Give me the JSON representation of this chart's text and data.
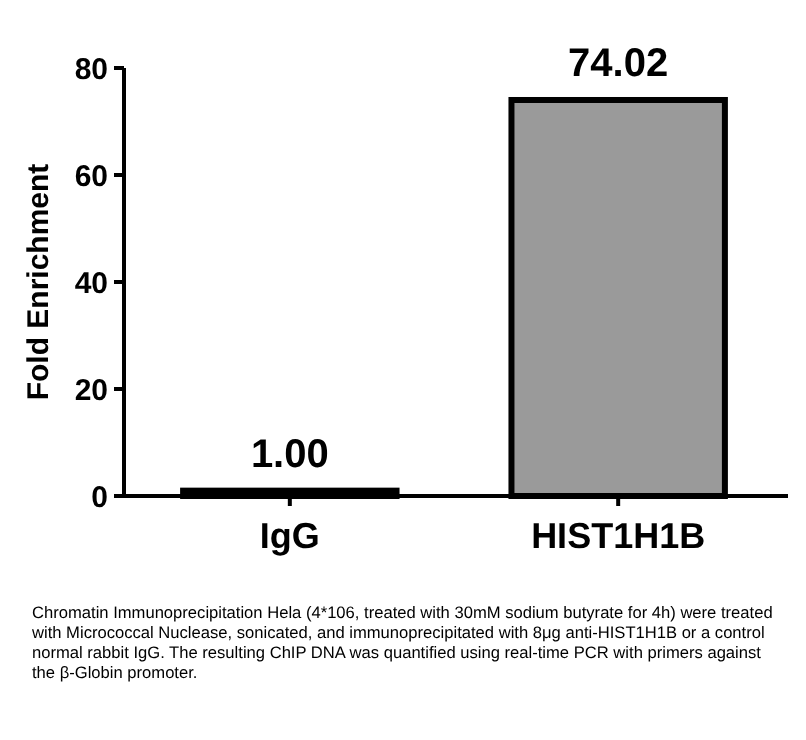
{
  "chart_data": {
    "type": "bar",
    "ylabel": "Fold Enrichment",
    "categories": [
      "IgG",
      "HIST1H1B"
    ],
    "values": [
      1.0,
      74.02
    ],
    "colors": [
      "#000000",
      "#9a9a9a"
    ],
    "ylim": [
      0,
      80
    ],
    "yticks": [
      0,
      20,
      40,
      60,
      80
    ],
    "value_labels": [
      "1.00",
      "74.02"
    ],
    "grid": false,
    "annotations": [
      "Chromatin Immunoprecipitation Hela (4*106, treated with 30mM sodium butyrate for 4h) were treated with Micrococcal Nuclease, sonicated, and immunoprecipitated with 8μg anti-HIST1H1B or a control normal rabbit IgG. The resulting ChIP DNA was quantified using real-time PCR with primers against the β-Globin promoter."
    ]
  }
}
